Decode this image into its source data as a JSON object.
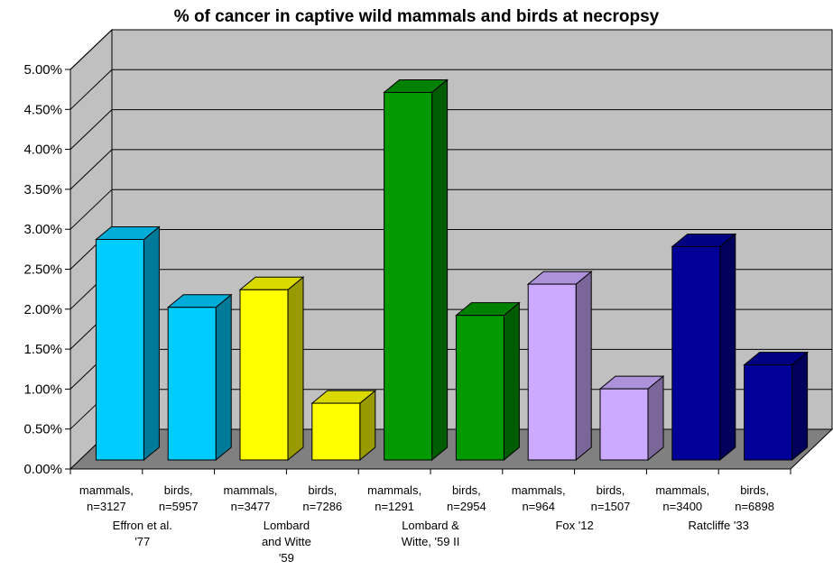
{
  "chart_data": {
    "type": "bar",
    "title": "% of cancer in captive wild mammals and birds at necropsy",
    "xlabel": "",
    "ylabel": "",
    "ylim": [
      0,
      0.05
    ],
    "y_tick_labels": [
      "0.00%",
      "0.50%",
      "1.00%",
      "1.50%",
      "2.00%",
      "2.50%",
      "3.00%",
      "3.50%",
      "4.00%",
      "4.50%",
      "5.00%"
    ],
    "grid": true,
    "three_d": true,
    "categories": [
      "mammals, n=3127",
      "birds, n=5957",
      "mammals, n=3477",
      "birds, n=7286",
      "mammals, n=1291",
      "birds, n=2954",
      "mammals, n=964",
      "birds, n=1507",
      "mammals, n=3400",
      "birds, n=6898"
    ],
    "category_lines": [
      [
        "mammals,",
        "n=3127"
      ],
      [
        "birds,",
        "n=5957"
      ],
      [
        "mammals,",
        "n=3477"
      ],
      [
        "birds,",
        "n=7286"
      ],
      [
        "mammals,",
        "n=1291"
      ],
      [
        "birds,",
        "n=2954"
      ],
      [
        "mammals,",
        "n=964"
      ],
      [
        "birds,",
        "n=1507"
      ],
      [
        "mammals,",
        "n=3400"
      ],
      [
        "birds,",
        "n=6898"
      ]
    ],
    "groups": [
      {
        "lines": [
          "Effron et al.",
          "'77"
        ]
      },
      {
        "lines": [
          "Lombard",
          "and Witte",
          "'59"
        ]
      },
      {
        "lines": [
          "Lombard &",
          "Witte, '59 II"
        ]
      },
      {
        "lines": [
          "Fox '12"
        ]
      },
      {
        "lines": [
          "Ratcliffe '33"
        ]
      }
    ],
    "values": [
      0.0276,
      0.0191,
      0.0213,
      0.0071,
      0.046,
      0.0181,
      0.022,
      0.0089,
      0.0267,
      0.0119
    ],
    "bar_colors": [
      "#00ccff",
      "#00ccff",
      "#ffff00",
      "#ffff00",
      "#009900",
      "#009900",
      "#ccaaff",
      "#ccaaff",
      "#000099",
      "#000099"
    ]
  }
}
